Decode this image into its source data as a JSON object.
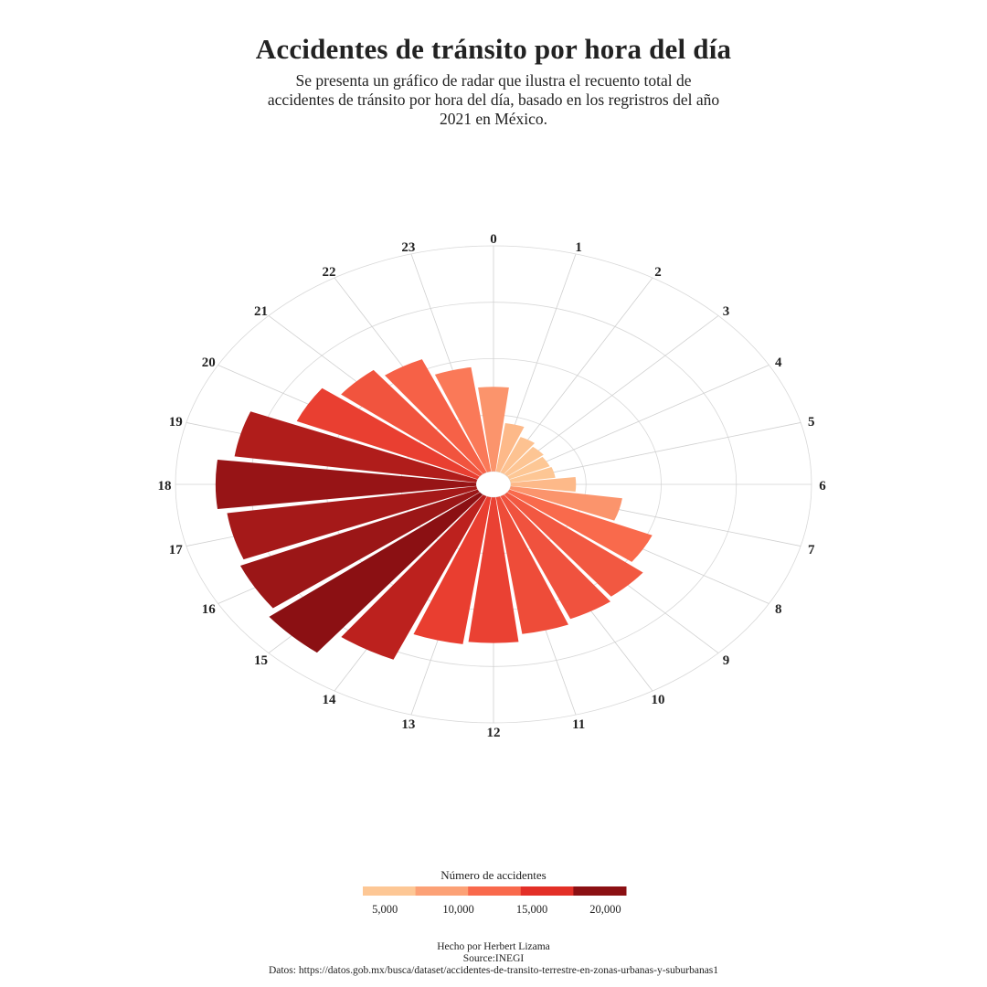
{
  "header": {
    "title": "Accidentes de tránsito por hora del día",
    "subtitle": "Se presenta un gráfico de radar que ilustra el recuento total de accidentes de tránsito por hora del día, basado en los regristros del año 2021 en México."
  },
  "chart_data": {
    "type": "bar",
    "coordinate_system": "polar",
    "title": "Accidentes de tránsito por hora del día",
    "categories": [
      "0",
      "1",
      "2",
      "3",
      "4",
      "5",
      "6",
      "7",
      "8",
      "9",
      "10",
      "11",
      "12",
      "13",
      "14",
      "15",
      "16",
      "17",
      "18",
      "19",
      "20",
      "21",
      "22",
      "23"
    ],
    "values": [
      9000,
      5200,
      4100,
      3700,
      3500,
      3600,
      5200,
      9000,
      12400,
      13800,
      14200,
      14700,
      15500,
      15800,
      18900,
      21400,
      20600,
      20100,
      20800,
      19500,
      15700,
      14100,
      13100,
      11200
    ],
    "rlim": [
      0,
      24000
    ],
    "grid": true,
    "color_scale": {
      "title": "Número de accidentes",
      "colors": [
        "#fdc795",
        "#fca176",
        "#f9694c",
        "#e32f27",
        "#8b1013"
      ],
      "breaks": [
        5000,
        10000,
        15000,
        20000
      ],
      "break_labels": [
        "5,000",
        "10,000",
        "15,000",
        "20,000"
      ],
      "domain": [
        3500,
        21400
      ]
    }
  },
  "caption": {
    "author": "Hecho por Herbert Lizama",
    "source": "Source:INEGI",
    "data": "Datos: https://datos.gob.mx/busca/dataset/accidentes-de-transito-terrestre-en-zonas-urbanas-y-suburbanas1"
  }
}
